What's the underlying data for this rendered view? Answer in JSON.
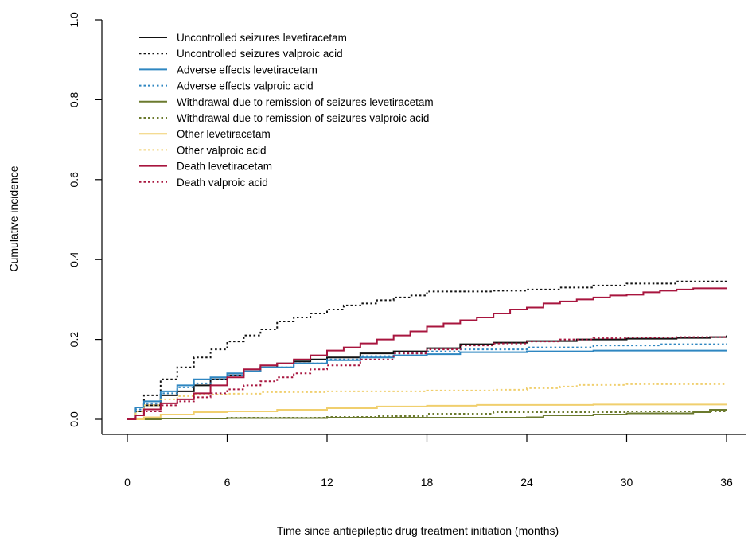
{
  "chart_data": {
    "type": "line",
    "xlabel": "Time since antiepileptic drug treatment initiation (months)",
    "ylabel": "Cumulative incidence",
    "xlim": [
      0,
      36
    ],
    "ylim": [
      0,
      1
    ],
    "x_ticks": [
      "0",
      "6",
      "12",
      "18",
      "24",
      "30",
      "36"
    ],
    "y_ticks": [
      "0.0",
      "0.2",
      "0.4",
      "0.6",
      "0.8",
      "1.0"
    ],
    "grid": false,
    "legend_position": "top-left",
    "series": [
      {
        "name": "Uncontrolled seizures levetiracetam",
        "color": "#111111",
        "dash": "solid",
        "x": [
          0,
          0.5,
          1,
          2,
          3,
          4,
          5,
          6,
          7,
          8,
          9,
          10,
          11,
          12,
          14,
          16,
          18,
          20,
          22,
          24,
          27,
          30,
          33,
          35,
          36
        ],
        "y": [
          0,
          0.02,
          0.035,
          0.06,
          0.07,
          0.085,
          0.1,
          0.11,
          0.12,
          0.13,
          0.14,
          0.145,
          0.15,
          0.155,
          0.165,
          0.17,
          0.178,
          0.188,
          0.192,
          0.196,
          0.2,
          0.202,
          0.204,
          0.206,
          0.21
        ]
      },
      {
        "name": "Uncontrolled seizures valproic acid",
        "color": "#111111",
        "dash": "dotted",
        "x": [
          0,
          0.5,
          1,
          2,
          3,
          4,
          5,
          6,
          7,
          8,
          9,
          10,
          11,
          12,
          13,
          14,
          15,
          16,
          17,
          18,
          20,
          22,
          24,
          26,
          28,
          30,
          33,
          36
        ],
        "y": [
          0,
          0.03,
          0.06,
          0.1,
          0.13,
          0.155,
          0.175,
          0.195,
          0.21,
          0.225,
          0.245,
          0.255,
          0.265,
          0.275,
          0.285,
          0.29,
          0.298,
          0.305,
          0.31,
          0.32,
          0.32,
          0.322,
          0.325,
          0.33,
          0.335,
          0.34,
          0.345,
          0.345
        ]
      },
      {
        "name": "Adverse effects levetiracetam",
        "color": "#2e86c1",
        "dash": "solid",
        "x": [
          0,
          0.5,
          1,
          2,
          3,
          4,
          5,
          6,
          7,
          8,
          10,
          12,
          14,
          16,
          18,
          20,
          24,
          28,
          32,
          36
        ],
        "y": [
          0,
          0.03,
          0.045,
          0.07,
          0.085,
          0.1,
          0.105,
          0.115,
          0.12,
          0.13,
          0.14,
          0.148,
          0.155,
          0.16,
          0.163,
          0.168,
          0.17,
          0.172,
          0.172,
          0.172
        ]
      },
      {
        "name": "Adverse effects valproic acid",
        "color": "#2e86c1",
        "dash": "dotted",
        "x": [
          0,
          0.5,
          1,
          2,
          3,
          4,
          5,
          6,
          7,
          8,
          10,
          12,
          14,
          16,
          18,
          20,
          24,
          28,
          32,
          36
        ],
        "y": [
          0,
          0.025,
          0.04,
          0.065,
          0.08,
          0.09,
          0.1,
          0.11,
          0.12,
          0.13,
          0.14,
          0.15,
          0.158,
          0.165,
          0.17,
          0.175,
          0.18,
          0.185,
          0.188,
          0.19
        ]
      },
      {
        "name": "Withdrawal due to remission of seizures levetiracetam",
        "color": "#6b7a2e",
        "dash": "solid",
        "x": [
          0,
          2,
          6,
          12,
          18,
          24,
          25,
          28,
          30,
          34,
          35,
          36
        ],
        "y": [
          0,
          0.002,
          0.003,
          0.004,
          0.004,
          0.005,
          0.01,
          0.012,
          0.015,
          0.018,
          0.024,
          0.024
        ]
      },
      {
        "name": "Withdrawal due to remission of seizures valproic acid",
        "color": "#6b7a2e",
        "dash": "dotted",
        "x": [
          0,
          2,
          6,
          12,
          15,
          18,
          22,
          24,
          30,
          36
        ],
        "y": [
          0,
          0.002,
          0.004,
          0.006,
          0.008,
          0.014,
          0.018,
          0.018,
          0.02,
          0.02
        ]
      },
      {
        "name": "Other levetiracetam",
        "color": "#f0cf6e",
        "dash": "solid",
        "x": [
          0,
          1,
          2,
          4,
          6,
          9,
          12,
          15,
          18,
          21,
          24,
          28,
          32,
          36
        ],
        "y": [
          0,
          0.005,
          0.012,
          0.018,
          0.02,
          0.024,
          0.028,
          0.032,
          0.034,
          0.036,
          0.036,
          0.037,
          0.037,
          0.037
        ]
      },
      {
        "name": "Other valproic acid",
        "color": "#f0cf6e",
        "dash": "dotted",
        "x": [
          0,
          0.5,
          1,
          2,
          3,
          4,
          6,
          8,
          12,
          16,
          18,
          20,
          22,
          24,
          26,
          27,
          30,
          33,
          36
        ],
        "y": [
          0,
          0.02,
          0.035,
          0.05,
          0.058,
          0.062,
          0.064,
          0.068,
          0.07,
          0.07,
          0.072,
          0.072,
          0.074,
          0.078,
          0.082,
          0.086,
          0.088,
          0.088,
          0.088
        ]
      },
      {
        "name": "Death levetiracetam",
        "color": "#a8153e",
        "dash": "solid",
        "x": [
          0,
          0.5,
          1,
          2,
          3,
          4,
          5,
          6,
          7,
          8,
          9,
          10,
          11,
          12,
          13,
          14,
          15,
          16,
          17,
          18,
          19,
          20,
          21,
          22,
          23,
          24,
          25,
          26,
          27,
          28,
          29,
          30,
          31,
          32,
          33,
          34,
          35,
          36
        ],
        "y": [
          0,
          0.01,
          0.025,
          0.04,
          0.05,
          0.065,
          0.085,
          0.105,
          0.125,
          0.135,
          0.14,
          0.15,
          0.16,
          0.172,
          0.18,
          0.19,
          0.2,
          0.21,
          0.22,
          0.232,
          0.24,
          0.248,
          0.255,
          0.265,
          0.275,
          0.28,
          0.29,
          0.295,
          0.3,
          0.305,
          0.31,
          0.312,
          0.318,
          0.322,
          0.325,
          0.328,
          0.328,
          0.328
        ]
      },
      {
        "name": "Death valproic acid",
        "color": "#a8153e",
        "dash": "dotted",
        "x": [
          0,
          0.5,
          1,
          2,
          3,
          4,
          5,
          6,
          7,
          8,
          9,
          10,
          11,
          12,
          14,
          16,
          18,
          20,
          22,
          24,
          26,
          28,
          30,
          33,
          36
        ],
        "y": [
          0,
          0.01,
          0.02,
          0.035,
          0.045,
          0.055,
          0.065,
          0.075,
          0.085,
          0.095,
          0.105,
          0.115,
          0.125,
          0.135,
          0.15,
          0.165,
          0.175,
          0.185,
          0.19,
          0.195,
          0.2,
          0.203,
          0.205,
          0.206,
          0.207
        ]
      }
    ]
  }
}
